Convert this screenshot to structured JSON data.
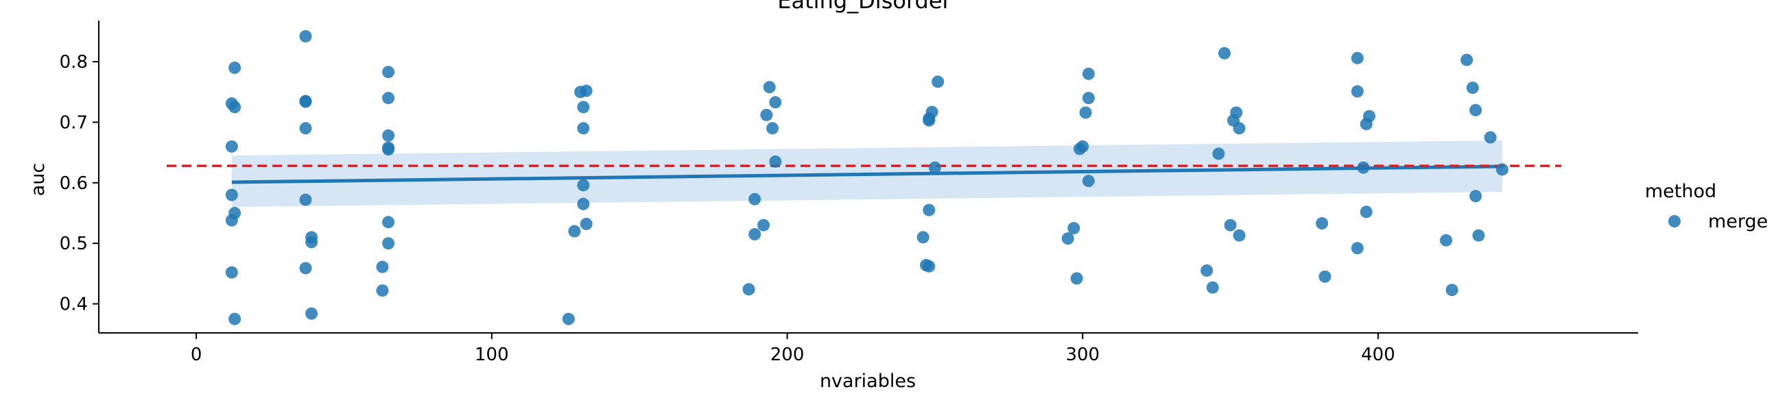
{
  "chart_data": {
    "type": "scatter",
    "title": "Eating_Disorder",
    "xlabel": "nvariables",
    "ylabel": "auc",
    "xlim": [
      -33,
      488
    ],
    "ylim": [
      0.352,
      0.868
    ],
    "xticks": [
      0,
      100,
      200,
      300,
      400
    ],
    "yticks": [
      0.4,
      0.5,
      0.6,
      0.7,
      0.8
    ],
    "grid": false,
    "legend": {
      "title": "method",
      "placement": "right",
      "entries": [
        "merge"
      ]
    },
    "colors": {
      "points": "#1f77b4",
      "regression": "#1f77b4",
      "band": "#c6dbef",
      "reference": "#e41a1c"
    },
    "series": [
      {
        "name": "merge",
        "points": [
          [
            12,
            0.731
          ],
          [
            13,
            0.725
          ],
          [
            12,
            0.66
          ],
          [
            12,
            0.58
          ],
          [
            13,
            0.55
          ],
          [
            12,
            0.538
          ],
          [
            12,
            0.452
          ],
          [
            13,
            0.375
          ],
          [
            13,
            0.79
          ],
          [
            37,
            0.842
          ],
          [
            37,
            0.735
          ],
          [
            37,
            0.734
          ],
          [
            37,
            0.69
          ],
          [
            37,
            0.572
          ],
          [
            39,
            0.51
          ],
          [
            39,
            0.502
          ],
          [
            37,
            0.459
          ],
          [
            39,
            0.384
          ],
          [
            65,
            0.783
          ],
          [
            65,
            0.74
          ],
          [
            65,
            0.678
          ],
          [
            65,
            0.658
          ],
          [
            65,
            0.655
          ],
          [
            65,
            0.535
          ],
          [
            65,
            0.5
          ],
          [
            63,
            0.461
          ],
          [
            63,
            0.422
          ],
          [
            130,
            0.75
          ],
          [
            132,
            0.752
          ],
          [
            131,
            0.725
          ],
          [
            131,
            0.69
          ],
          [
            131,
            0.596
          ],
          [
            131,
            0.565
          ],
          [
            132,
            0.532
          ],
          [
            128,
            0.52
          ],
          [
            126,
            0.375
          ],
          [
            194,
            0.758
          ],
          [
            196,
            0.733
          ],
          [
            193,
            0.712
          ],
          [
            195,
            0.69
          ],
          [
            196,
            0.635
          ],
          [
            189,
            0.573
          ],
          [
            192,
            0.53
          ],
          [
            189,
            0.515
          ],
          [
            187,
            0.424
          ],
          [
            251,
            0.767
          ],
          [
            249,
            0.717
          ],
          [
            248,
            0.706
          ],
          [
            248,
            0.703
          ],
          [
            250,
            0.625
          ],
          [
            248,
            0.555
          ],
          [
            246,
            0.51
          ],
          [
            247,
            0.464
          ],
          [
            248,
            0.462
          ],
          [
            302,
            0.78
          ],
          [
            302,
            0.74
          ],
          [
            301,
            0.716
          ],
          [
            300,
            0.66
          ],
          [
            299,
            0.656
          ],
          [
            302,
            0.603
          ],
          [
            297,
            0.525
          ],
          [
            295,
            0.508
          ],
          [
            298,
            0.442
          ],
          [
            348,
            0.814
          ],
          [
            352,
            0.716
          ],
          [
            351,
            0.703
          ],
          [
            353,
            0.69
          ],
          [
            346,
            0.648
          ],
          [
            350,
            0.53
          ],
          [
            353,
            0.513
          ],
          [
            342,
            0.455
          ],
          [
            344,
            0.427
          ],
          [
            393,
            0.806
          ],
          [
            393,
            0.751
          ],
          [
            397,
            0.71
          ],
          [
            396,
            0.697
          ],
          [
            395,
            0.625
          ],
          [
            396,
            0.552
          ],
          [
            381,
            0.533
          ],
          [
            393,
            0.492
          ],
          [
            382,
            0.445
          ],
          [
            430,
            0.803
          ],
          [
            432,
            0.757
          ],
          [
            433,
            0.72
          ],
          [
            438,
            0.675
          ],
          [
            442,
            0.622
          ],
          [
            433,
            0.578
          ],
          [
            434,
            0.513
          ],
          [
            423,
            0.505
          ],
          [
            425,
            0.423
          ]
        ]
      }
    ],
    "regression": {
      "x_start": 12,
      "x_end": 442,
      "y_start": 0.601,
      "y_end": 0.627,
      "band_lower": [
        0.56,
        0.585
      ],
      "band_upper": [
        0.645,
        0.67
      ]
    },
    "reference_line": {
      "y": 0.628,
      "x_start": -10,
      "x_end": 462,
      "style": "dashed"
    }
  }
}
